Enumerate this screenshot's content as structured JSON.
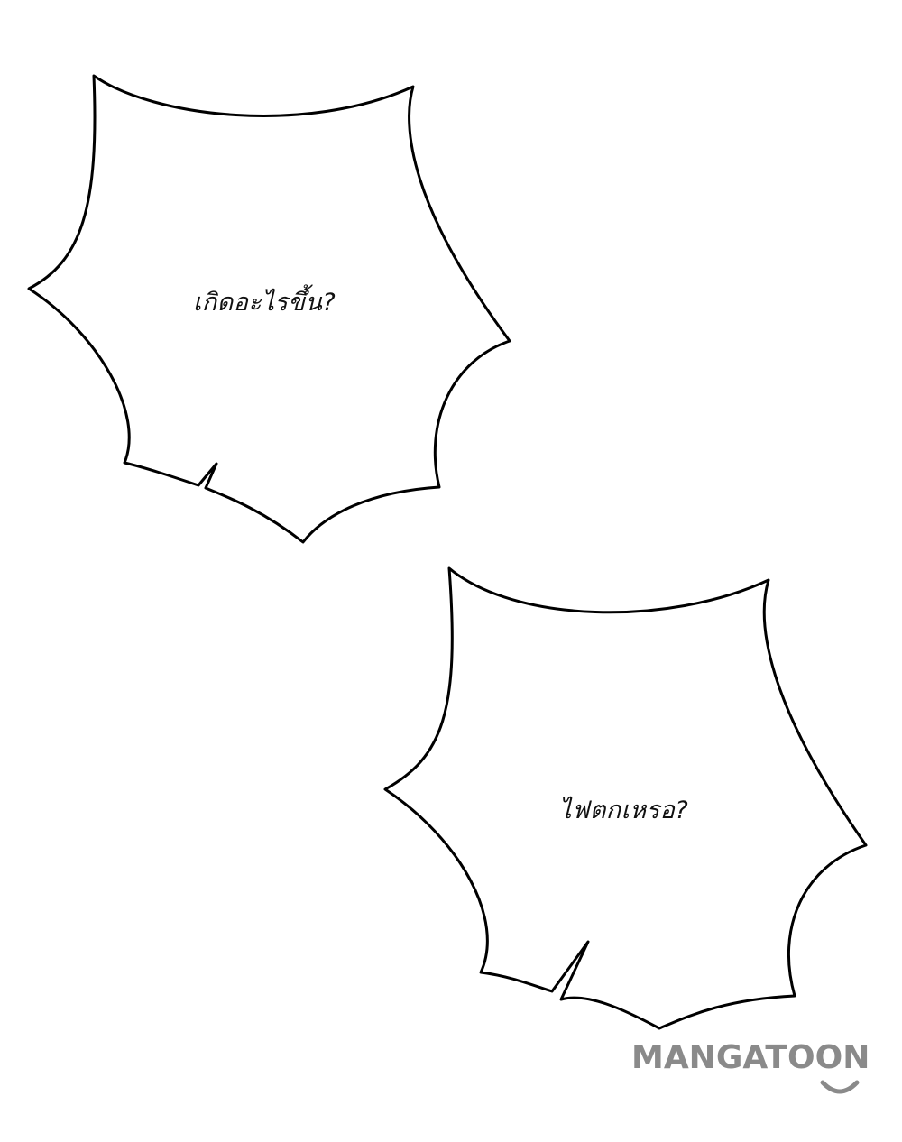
{
  "bubbles": [
    {
      "id": "bubble-1",
      "text": "เกิดอะไรขึ้น?"
    },
    {
      "id": "bubble-2",
      "text": "ไฟตกเหรอ?"
    }
  ],
  "watermark": {
    "text": "MANGATOON",
    "color": "#8a8a8a"
  },
  "colors": {
    "background": "#ffffff",
    "outline": "#000000"
  }
}
